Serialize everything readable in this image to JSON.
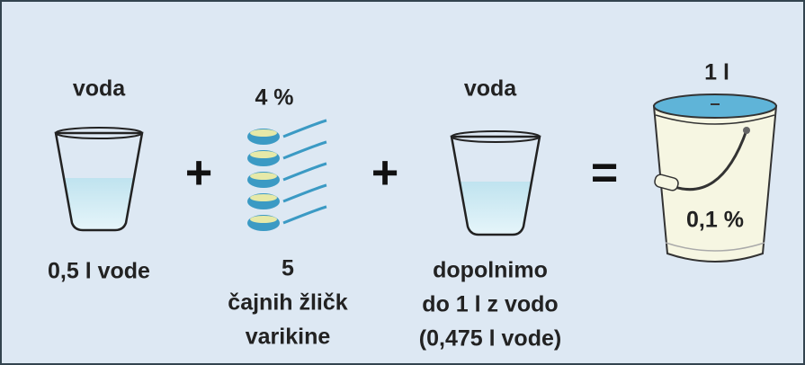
{
  "columns": [
    {
      "heading": "voda",
      "caption": [
        "0,5 l vode"
      ]
    },
    {
      "heading": "4 %",
      "caption": [
        "5",
        "čajnih žličk",
        "varikine"
      ]
    },
    {
      "heading": "voda",
      "caption": [
        "dopolnimo",
        "do 1 l z vodo",
        "(0,475 l vode)"
      ]
    },
    {
      "heading": "1 l",
      "label": "0,1 %"
    }
  ],
  "operators": [
    "+",
    "+",
    "="
  ]
}
